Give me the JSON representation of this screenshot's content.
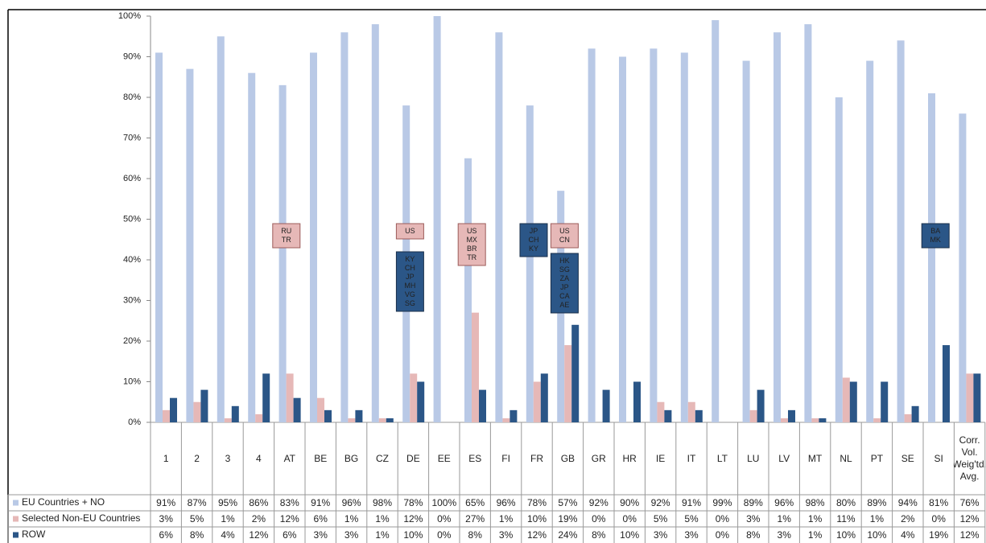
{
  "chart_data": {
    "type": "bar",
    "categories": [
      "1",
      "2",
      "3",
      "4",
      "AT",
      "BE",
      "BG",
      "CZ",
      "DE",
      "EE",
      "ES",
      "FI",
      "FR",
      "GB",
      "GR",
      "HR",
      "IE",
      "IT",
      "LT",
      "LU",
      "LV",
      "MT",
      "NL",
      "PT",
      "SE",
      "SI",
      "Corr. Vol. Weig'td. Avg."
    ],
    "series": [
      {
        "name": "EU Countries + NO",
        "color": "#b9c9e6",
        "values": [
          91,
          87,
          95,
          86,
          83,
          91,
          96,
          98,
          78,
          100,
          65,
          96,
          78,
          57,
          92,
          90,
          92,
          91,
          99,
          89,
          96,
          98,
          80,
          89,
          94,
          81,
          76
        ],
        "value_labels": [
          "91%",
          "87%",
          "95%",
          "86%",
          "83%",
          "91%",
          "96%",
          "98%",
          "78%",
          "100%",
          "65%",
          "96%",
          "78%",
          "57%",
          "92%",
          "90%",
          "92%",
          "91%",
          "99%",
          "89%",
          "96%",
          "98%",
          "80%",
          "89%",
          "94%",
          "81%",
          "76%"
        ]
      },
      {
        "name": "Selected Non-EU Countries",
        "color": "#e6b8b7",
        "values": [
          3,
          5,
          1,
          2,
          12,
          6,
          1,
          1,
          12,
          0,
          27,
          1,
          10,
          19,
          0,
          0,
          5,
          5,
          0,
          3,
          1,
          1,
          11,
          1,
          2,
          0,
          12
        ],
        "value_labels": [
          "3%",
          "5%",
          "1%",
          "2%",
          "12%",
          "6%",
          "1%",
          "1%",
          "12%",
          "0%",
          "27%",
          "1%",
          "10%",
          "19%",
          "0%",
          "0%",
          "5%",
          "5%",
          "0%",
          "3%",
          "1%",
          "1%",
          "11%",
          "1%",
          "2%",
          "0%",
          "12%"
        ]
      },
      {
        "name": "ROW",
        "color": "#2b5687",
        "values": [
          6,
          8,
          4,
          12,
          6,
          3,
          3,
          1,
          10,
          0,
          8,
          3,
          12,
          24,
          8,
          10,
          3,
          3,
          0,
          8,
          3,
          1,
          10,
          10,
          4,
          19,
          12
        ],
        "value_labels": [
          "6%",
          "8%",
          "4%",
          "12%",
          "6%",
          "3%",
          "3%",
          "1%",
          "10%",
          "0%",
          "8%",
          "3%",
          "12%",
          "24%",
          "8%",
          "10%",
          "3%",
          "3%",
          "0%",
          "8%",
          "3%",
          "1%",
          "10%",
          "10%",
          "4%",
          "19%",
          "12%"
        ]
      }
    ],
    "ylim": [
      0,
      100
    ],
    "yticks": [
      {
        "value": 0,
        "label": "0%"
      },
      {
        "value": 10,
        "label": "10%"
      },
      {
        "value": 20,
        "label": "20%"
      },
      {
        "value": 30,
        "label": "30%"
      },
      {
        "value": 40,
        "label": "40%"
      },
      {
        "value": 50,
        "label": "50%"
      },
      {
        "value": 60,
        "label": "60%"
      },
      {
        "value": 70,
        "label": "70%"
      },
      {
        "value": 80,
        "label": "80%"
      },
      {
        "value": 90,
        "label": "90%"
      },
      {
        "value": 100,
        "label": "100%"
      }
    ],
    "annotations": [
      {
        "series": 1,
        "lines": [
          "RU",
          "TR"
        ]
      },
      {
        "series": 1,
        "lines": [
          "US"
        ]
      },
      {
        "series": 2,
        "lines": [
          "KY",
          "CH",
          "JP",
          "MH",
          "VG",
          "SG"
        ]
      },
      {
        "series": 1,
        "lines": [
          "US",
          "MX",
          "BR",
          "TR"
        ]
      },
      {
        "series": 2,
        "lines": [
          "JP",
          "CH",
          "KY"
        ]
      },
      {
        "series": 1,
        "lines": [
          "US",
          "CN"
        ]
      },
      {
        "series": 2,
        "lines": [
          "HK",
          "SG",
          "ZA",
          "JP",
          "CA",
          "AE"
        ]
      },
      {
        "series": 2,
        "lines": [
          "BA",
          "MK"
        ]
      }
    ]
  }
}
